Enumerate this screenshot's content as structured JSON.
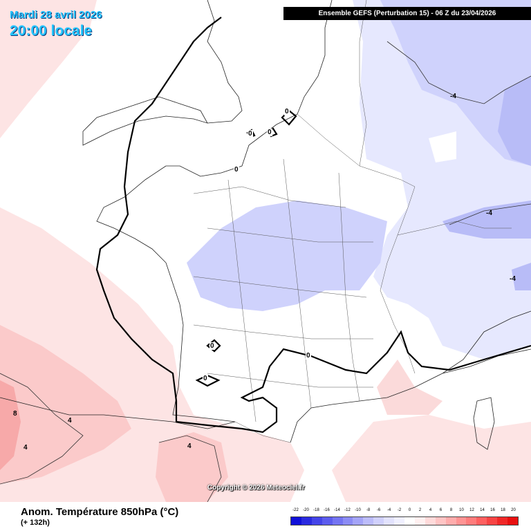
{
  "header": {
    "date": "Mardi 28 avril 2026",
    "time": "20:00 locale",
    "run": "Ensemble GEFS  (Perturbation 15)  -  06 Z du 23/04/2026"
  },
  "footer": {
    "variable": "Anom. Température 850hPa (°C)",
    "lead_time": "(+ 132h)",
    "copyright": "Copyright © 2026 Meteociel.fr"
  },
  "contour_labels": {
    "zero_1": "0",
    "zero_2": "0",
    "zero_3": "0",
    "zero_4": "0",
    "zero_5": "0",
    "zero_6": "0",
    "zero_7": "0",
    "minus4_1": "-4",
    "minus4_2": "-4",
    "minus4_3": "-4",
    "plus4_1": "4",
    "plus4_2": "4",
    "plus4_3": "4",
    "plus8_1": "8"
  },
  "scale": {
    "labels": [
      "-22",
      "-20",
      "-18",
      "-16",
      "-14",
      "-12",
      "-10",
      "-8",
      "-6",
      "-4",
      "-2",
      "0",
      "2",
      "4",
      "6",
      "8",
      "10",
      "12",
      "14",
      "16",
      "18",
      "20"
    ],
    "colors": [
      "#1010d8",
      "#2a2ae0",
      "#4444e8",
      "#5c5cee",
      "#7474f2",
      "#8c8cf5",
      "#a4a4f8",
      "#bcbcfa",
      "#d0d0fc",
      "#e2e2fd",
      "#f0f0ff",
      "#ffffff",
      "#fff0f0",
      "#ffdada",
      "#ffc4c4",
      "#ffacac",
      "#ff9494",
      "#ff7c7c",
      "#ff6060",
      "#f84444",
      "#f02828",
      "#e81010"
    ]
  },
  "colors": {
    "cold_light": "#e6e8fe",
    "cold_mid": "#cfd2fc",
    "cold_strong": "#b8bcf7",
    "warm_light": "#fde4e4",
    "warm_mid": "#fbcaca",
    "warm_strong": "#f7a9a9"
  }
}
